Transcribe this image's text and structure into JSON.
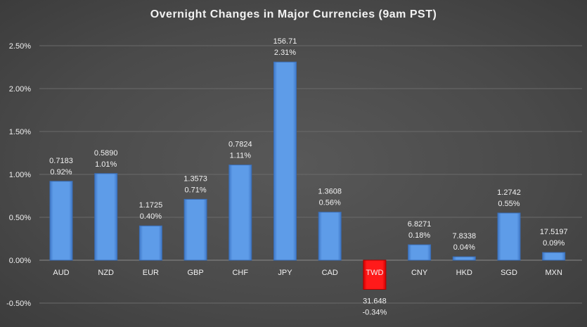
{
  "chart_data": {
    "type": "bar",
    "title": "Overnight Changes in Major Currencies (9am PST)",
    "categories": [
      "AUD",
      "NZD",
      "EUR",
      "GBP",
      "CHF",
      "JPY",
      "CAD",
      "TWD",
      "CNY",
      "HKD",
      "SGD",
      "MXN"
    ],
    "values": [
      0.92,
      1.01,
      0.4,
      0.71,
      1.11,
      2.31,
      0.56,
      -0.34,
      0.18,
      0.04,
      0.55,
      0.09
    ],
    "rates": [
      "0.7183",
      "0.5890",
      "1.1725",
      "1.3573",
      "0.7824",
      "156.71",
      "1.3608",
      "31.648",
      "6.8271",
      "7.8338",
      "1.2742",
      "17.5197"
    ],
    "data_labels": [
      "0.92%",
      "1.01%",
      "0.40%",
      "0.71%",
      "1.11%",
      "2.31%",
      "0.56%",
      "-0.34%",
      "0.18%",
      "0.04%",
      "0.55%",
      "0.09%"
    ],
    "y_ticks": [
      "-0.50%",
      "0.00%",
      "0.50%",
      "1.00%",
      "1.50%",
      "2.00%",
      "2.50%"
    ],
    "ylim": [
      -0.5,
      2.5
    ],
    "grid": true,
    "colors": {
      "positive": "#5b9be6",
      "negative": "#ff0000",
      "background": "#4a4a4a",
      "text": "#f2f2f2"
    }
  }
}
